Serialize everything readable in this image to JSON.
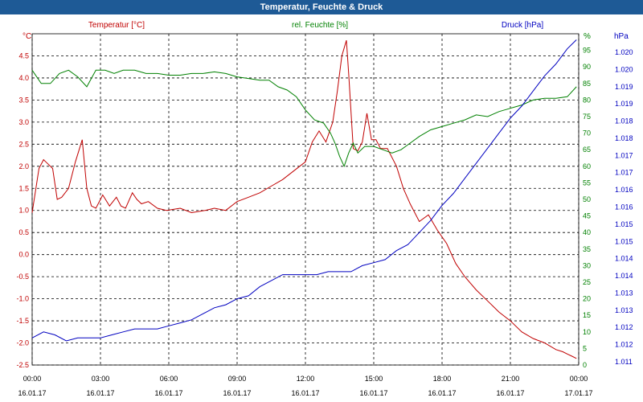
{
  "window": {
    "title": "Temperatur, Feuchte & Druck"
  },
  "colors": {
    "temperature": "#c00000",
    "humidity": "#008000",
    "pressure": "#0000c0",
    "titlebar": "#1e5a96"
  },
  "chart_data": {
    "type": "line",
    "title": "Temperatur, Feuchte & Druck",
    "grid": true,
    "axes": {
      "temperature": {
        "label": "Temperatur [°C]",
        "unit": "°C",
        "range": [
          -2.5,
          5.0
        ],
        "ticks": [
          "-2.5",
          "-2.0",
          "-1.5",
          "-1.0",
          "-0.5",
          "0.0",
          "0.5",
          "1.0",
          "1.5",
          "2.0",
          "2.5",
          "3.0",
          "3.5",
          "4.0",
          "4.5"
        ]
      },
      "humidity": {
        "label": "rel. Feuchte [%]",
        "unit": "%",
        "range": [
          0,
          100
        ],
        "ticks": [
          "0",
          "5",
          "10",
          "15",
          "20",
          "25",
          "30",
          "35",
          "40",
          "45",
          "50",
          "55",
          "60",
          "65",
          "70",
          "75",
          "80",
          "85",
          "90",
          "95"
        ]
      },
      "pressure": {
        "label": "Druck [hPa]",
        "unit": "hPa",
        "range": [
          1.0105,
          1.0215
        ],
        "ticks": [
          "1.011",
          "1.012",
          "1.012",
          "1.013",
          "1.013",
          "1.014",
          "1.014",
          "1.015",
          "1.015",
          "1.016",
          "1.016",
          "1.017",
          "1.017",
          "1.018",
          "1.018",
          "1.019",
          "1.019",
          "1.020",
          "1.020"
        ]
      }
    },
    "x_ticks": [
      {
        "time": "00:00",
        "date": "16.01.17"
      },
      {
        "time": "03:00",
        "date": "16.01.17"
      },
      {
        "time": "06:00",
        "date": "16.01.17"
      },
      {
        "time": "09:00",
        "date": "16.01.17"
      },
      {
        "time": "12:00",
        "date": "16.01.17"
      },
      {
        "time": "15:00",
        "date": "16.01.17"
      },
      {
        "time": "18:00",
        "date": "16.01.17"
      },
      {
        "time": "21:00",
        "date": "16.01.17"
      },
      {
        "time": "00:00",
        "date": "17.01.17"
      }
    ],
    "x_range_hours": [
      0,
      24
    ],
    "series": [
      {
        "name": "Temperatur [°C]",
        "axis": "temperature",
        "x": [
          0,
          0.3,
          0.5,
          0.6,
          0.9,
          1.1,
          1.3,
          1.6,
          1.9,
          2.2,
          2.4,
          2.6,
          2.8,
          3.1,
          3.4,
          3.7,
          3.9,
          4.1,
          4.4,
          4.6,
          4.8,
          5.1,
          5.5,
          5.9,
          6.5,
          7,
          7.6,
          8,
          8.5,
          9,
          9.5,
          10,
          10.5,
          11,
          11.5,
          12,
          12.3,
          12.6,
          12.9,
          13.2,
          13.4,
          13.6,
          13.8,
          13.9,
          14.1,
          14.3,
          14.5,
          14.7,
          14.9,
          15.1,
          15.3,
          15.6,
          16,
          16.3,
          16.6,
          17,
          17.4,
          17.8,
          18.2,
          18.6,
          19,
          19.5,
          20,
          20.5,
          21,
          21.5,
          22,
          22.5,
          23,
          23.3,
          23.5,
          23.7,
          23.9
        ],
        "values": [
          0.95,
          1.95,
          2.15,
          2.1,
          1.95,
          1.25,
          1.3,
          1.5,
          2.1,
          2.6,
          1.5,
          1.1,
          1.05,
          1.35,
          1.1,
          1.3,
          1.1,
          1.05,
          1.4,
          1.25,
          1.15,
          1.2,
          1.05,
          1.0,
          1.05,
          0.95,
          1.0,
          1.05,
          1.0,
          1.2,
          1.3,
          1.4,
          1.55,
          1.7,
          1.9,
          2.1,
          2.55,
          2.8,
          2.55,
          3.0,
          3.7,
          4.5,
          4.85,
          4.1,
          2.4,
          2.35,
          2.55,
          3.2,
          2.6,
          2.6,
          2.4,
          2.4,
          2.0,
          1.5,
          1.15,
          0.75,
          0.9,
          0.55,
          0.25,
          -0.2,
          -0.5,
          -0.8,
          -1.05,
          -1.3,
          -1.5,
          -1.75,
          -1.9,
          -2.0,
          -2.15,
          -2.2,
          -2.25,
          -2.3,
          -2.35
        ]
      },
      {
        "name": "rel. Feuchte [%]",
        "axis": "humidity",
        "x": [
          0,
          0.4,
          0.8,
          1.2,
          1.6,
          2,
          2.4,
          2.8,
          3.2,
          3.6,
          4,
          4.5,
          5,
          5.5,
          6,
          6.5,
          7,
          7.5,
          8,
          8.5,
          9,
          9.5,
          10,
          10.4,
          10.8,
          11.2,
          11.6,
          12,
          12.4,
          12.8,
          13.1,
          13.3,
          13.5,
          13.7,
          13.9,
          14.1,
          14.3,
          14.6,
          15,
          15.4,
          15.8,
          16.2,
          16.6,
          17,
          17.5,
          18,
          18.5,
          19,
          19.5,
          20,
          20.5,
          21,
          21.5,
          22,
          22.5,
          23,
          23.5,
          23.9
        ],
        "values": [
          89,
          85,
          85,
          88,
          89,
          87,
          84,
          89,
          89,
          88,
          89,
          89,
          88,
          88,
          87.5,
          87.5,
          88,
          88,
          88.5,
          88,
          87,
          86.5,
          86,
          86,
          84,
          83,
          81,
          77,
          74,
          73,
          70,
          67,
          63,
          60,
          64,
          67,
          64,
          66,
          66,
          65,
          64,
          65,
          67,
          69,
          71,
          72,
          73,
          74,
          75.5,
          75,
          76.5,
          77.5,
          78.5,
          80,
          80.5,
          80.5,
          81,
          84
        ]
      },
      {
        "name": "Druck [hPa]",
        "axis": "pressure",
        "x": [
          0,
          0.5,
          1,
          1.5,
          2,
          2.5,
          3,
          3.5,
          4,
          4.5,
          5,
          5.5,
          6,
          6.5,
          7,
          7.5,
          8,
          8.5,
          9,
          9.5,
          10,
          10.5,
          11,
          11.5,
          12,
          12.5,
          13,
          13.5,
          14,
          14.5,
          15,
          15.5,
          16,
          16.5,
          17,
          17.5,
          18,
          18.5,
          19,
          19.5,
          20,
          20.5,
          21,
          21.5,
          22,
          22.5,
          23,
          23.5,
          23.9
        ],
        "values": [
          1.0114,
          1.0116,
          1.0115,
          1.0113,
          1.0114,
          1.0114,
          1.0114,
          1.0115,
          1.0116,
          1.0117,
          1.0117,
          1.0117,
          1.0118,
          1.0119,
          1.012,
          1.0122,
          1.0124,
          1.0125,
          1.0127,
          1.0128,
          1.0131,
          1.0133,
          1.0135,
          1.0135,
          1.0135,
          1.0135,
          1.0136,
          1.0136,
          1.0136,
          1.0138,
          1.0139,
          1.014,
          1.0143,
          1.0145,
          1.0149,
          1.0153,
          1.0158,
          1.0162,
          1.0167,
          1.0172,
          1.0177,
          1.0182,
          1.0187,
          1.0191,
          1.0196,
          1.0201,
          1.0205,
          1.021,
          1.0213
        ]
      }
    ]
  }
}
